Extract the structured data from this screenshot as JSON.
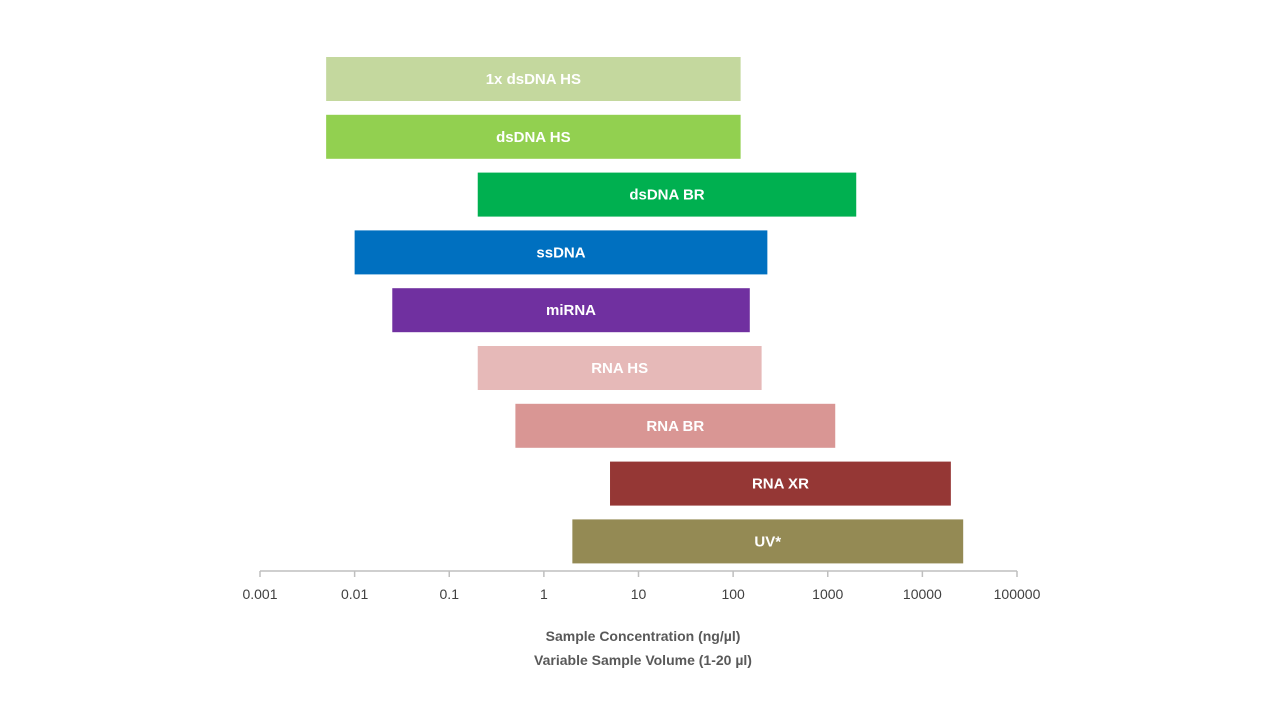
{
  "chart_data": {
    "type": "bar",
    "orientation": "horizontal-range",
    "xscale": "log",
    "xlim": [
      0.001,
      100000
    ],
    "ticks": [
      "0.001",
      "0.01",
      "0.1",
      "1",
      "10",
      "100",
      "1000",
      "10000",
      "100000"
    ],
    "xlabel": "Sample Concentration (ng/µl)",
    "xlabel2": "Variable Sample Volume (1-20 µl)",
    "grid": false,
    "legend": "none",
    "series": [
      {
        "name": "1x dsDNA HS",
        "low": 0.005,
        "high": 120,
        "color": "#c4d89e"
      },
      {
        "name": "dsDNA HS",
        "low": 0.005,
        "high": 120,
        "color": "#92d050"
      },
      {
        "name": "dsDNA BR",
        "low": 0.2,
        "high": 2000,
        "color": "#00b050"
      },
      {
        "name": "ssDNA",
        "low": 0.01,
        "high": 230,
        "color": "#0070c0"
      },
      {
        "name": "miRNA",
        "low": 0.025,
        "high": 150,
        "color": "#7030a0"
      },
      {
        "name": "RNA HS",
        "low": 0.2,
        "high": 200,
        "color": "#e6b9b8"
      },
      {
        "name": "RNA BR",
        "low": 0.5,
        "high": 1200,
        "color": "#d99694"
      },
      {
        "name": "RNA XR",
        "low": 5,
        "high": 20000,
        "color": "#953735"
      },
      {
        "name": "UV*",
        "low": 2,
        "high": 27000,
        "color": "#948a54"
      }
    ]
  }
}
